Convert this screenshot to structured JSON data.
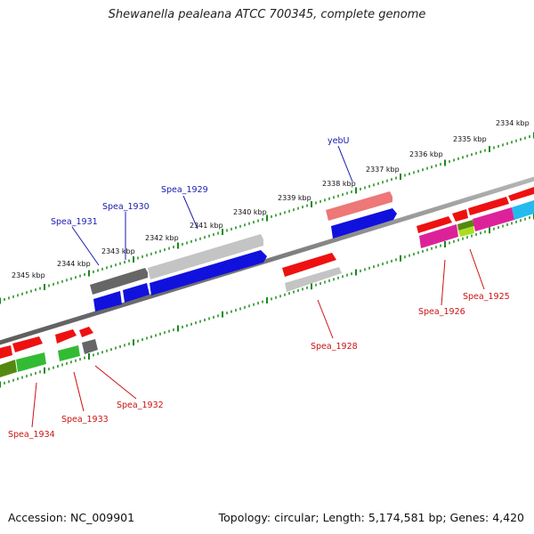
{
  "title": "Shewanella pealeana ATCC 700345, complete genome",
  "footer": {
    "accession": "Accession: NC_009901",
    "topology": "Topology: circular; Length: 5,174,581 bp; Genes: 4,420"
  },
  "scale_labels": [
    "2345 kbp",
    "2344 kbp",
    "2343 kbp",
    "2342 kbp",
    "2341 kbp",
    "2340 kbp",
    "2339 kbp",
    "2338 kbp",
    "2337 kbp",
    "2336 kbp",
    "2335 kbp",
    "2334 kbp"
  ],
  "gene_labels": {
    "top": [
      "Spea_1931",
      "Spea_1930",
      "Spea_1929",
      "yebU"
    ],
    "bottom": [
      "Spea_1934",
      "Spea_1933",
      "Spea_1932",
      "Spea_1928",
      "Spea_1926",
      "Spea_1925"
    ]
  },
  "colors": {
    "backbone": "#808080",
    "tick": "#1a8a1a",
    "forward_gene": "#ee1111",
    "blue_gene": "#1111dd",
    "grey_gene": "#bdbdbd",
    "dark_grey_gene": "#666666",
    "pink_gene": "#ee7777",
    "green_gene": "#33bb33",
    "olive_gene": "#558811",
    "magenta_gene": "#dd2299",
    "cyan_gene": "#22bbee",
    "yellow_green_gene": "#aadd22",
    "label_blue": "#1a1ab0",
    "label_red": "#cc1111"
  }
}
